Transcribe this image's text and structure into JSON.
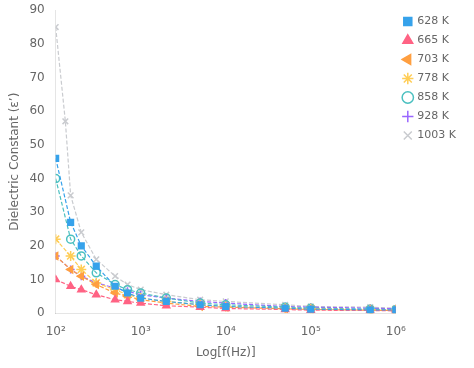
{
  "chart_data": {
    "type": "line",
    "xlabel": "Log[f(Hz)]",
    "ylabel": "Dielectric Constant (ε’)",
    "log": "x",
    "xlim": [
      100,
      1000000
    ],
    "xticks": [
      {
        "value": 100,
        "label": "10²"
      },
      {
        "value": 1000,
        "label": "10³"
      },
      {
        "value": 10000,
        "label": "10⁴"
      },
      {
        "value": 100000,
        "label": "10⁵"
      },
      {
        "value": 1000000,
        "label": "10⁶"
      }
    ],
    "ylim": [
      0,
      90
    ],
    "yticks": [
      0,
      10,
      20,
      30,
      40,
      50,
      60,
      70,
      80,
      90
    ],
    "grid": false,
    "legend": "upper right",
    "series": [
      {
        "name": "628 K",
        "marker": "square",
        "line_style": "dashed",
        "x": [
          100,
          150,
          200,
          300,
          500,
          700,
          1000,
          2000,
          5000,
          10000,
          50000,
          100000,
          500000,
          1000000
        ],
        "values": [
          46,
          27,
          20,
          14,
          8,
          6,
          4.5,
          3.5,
          2.5,
          2.0,
          1.5,
          1.2,
          1.0,
          1.0
        ]
      },
      {
        "name": "665 K",
        "marker": "triangle-up",
        "line_style": "dashed",
        "x": [
          100,
          150,
          200,
          300,
          500,
          700,
          1000,
          2000,
          5000,
          10000,
          50000,
          100000,
          500000,
          1000000
        ],
        "values": [
          10,
          8,
          7,
          5.5,
          4,
          3.5,
          3.0,
          2.2,
          1.8,
          1.4,
          1.1,
          0.9,
          0.8,
          0.7
        ]
      },
      {
        "name": "703 K",
        "marker": "triangle-left",
        "line_style": "dashed",
        "x": [
          100,
          150,
          200,
          300,
          500,
          700,
          1000,
          2000,
          5000,
          10000,
          50000,
          100000,
          500000,
          1000000
        ],
        "values": [
          17,
          13,
          11,
          8.5,
          6,
          5,
          4.0,
          3.0,
          2.0,
          1.8,
          1.3,
          1.1,
          0.9,
          0.8
        ]
      },
      {
        "name": "778 K",
        "marker": "star",
        "line_style": "dashed",
        "x": [
          100,
          150,
          200,
          300,
          500,
          700,
          1000,
          2000,
          5000,
          10000,
          50000,
          100000,
          500000,
          1000000
        ],
        "values": [
          22,
          17,
          13,
          9,
          7,
          5.5,
          4.5,
          3.5,
          2.5,
          2.0,
          1.5,
          1.3,
          1.0,
          1.0
        ]
      },
      {
        "name": "858 K",
        "marker": "open-circle",
        "line_style": "dashed",
        "x": [
          100,
          150,
          200,
          300,
          500,
          700,
          1000,
          2000,
          5000,
          10000,
          50000,
          100000,
          500000,
          1000000
        ],
        "values": [
          40,
          22,
          17,
          12,
          8.5,
          7,
          6,
          4.5,
          3.0,
          2.5,
          1.8,
          1.5,
          1.2,
          1.0
        ]
      },
      {
        "name": "928 K",
        "marker": "plus",
        "line_style": "dashed",
        "x": [
          100,
          150,
          200,
          300,
          500,
          700,
          1000,
          2000,
          5000,
          10000,
          50000,
          100000,
          500000,
          1000000
        ],
        "values": [
          17,
          13,
          11,
          9,
          7.5,
          6.5,
          5.5,
          4.5,
          3.5,
          3.0,
          2.0,
          1.8,
          1.5,
          1.3
        ]
      },
      {
        "name": "1003 K",
        "marker": "x",
        "line_style": "dashed",
        "x": [
          100,
          130,
          150,
          200,
          300,
          500,
          700,
          1000,
          2000,
          5000,
          10000,
          50000,
          100000,
          500000,
          1000000
        ],
        "values": [
          85,
          57,
          35,
          24,
          16,
          11,
          8.5,
          7.0,
          5.5,
          4.0,
          3.5,
          2.5,
          2.0,
          1.8,
          1.5
        ]
      }
    ]
  }
}
